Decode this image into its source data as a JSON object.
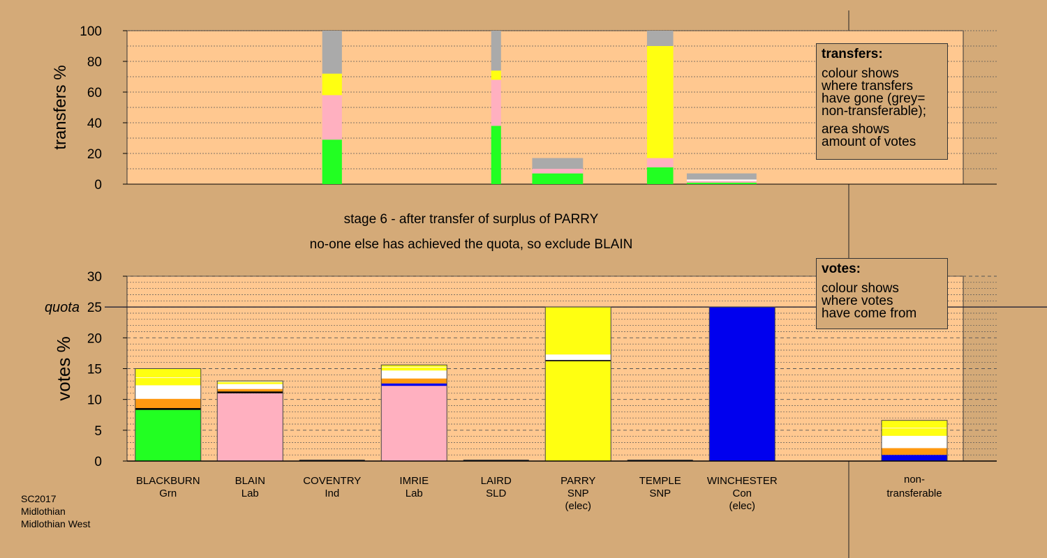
{
  "caption": {
    "line1": "stage 6 - after transfer of surplus of PARRY",
    "line2": "no-one else has achieved the quota, so exclude BLAIN"
  },
  "footer": [
    "SC2017",
    "Midlothian",
    "Midlothian West"
  ],
  "legend_transfers": {
    "title": "transfers:",
    "lines1": [
      "colour shows",
      "where transfers",
      "have gone (grey=",
      "non-transferable);"
    ],
    "lines2": [
      "area shows",
      "amount of votes"
    ]
  },
  "legend_votes": {
    "title": "votes:",
    "lines": [
      "colour shows",
      "where votes",
      "have come from"
    ]
  },
  "colors": {
    "background": "#d4aa78",
    "plot_bg": "#ffc890",
    "green": "#22ff22",
    "pink": "#ffb0c0",
    "yellow": "#ffff11",
    "grey": "#aaaaaa",
    "white": "#ffffff",
    "orange": "#ff9911",
    "blue": "#0000ee",
    "black": "#000000"
  },
  "chart_data": [
    {
      "type": "bar",
      "ylabel": "transfers %",
      "ylim": [
        0,
        100
      ],
      "yticks": [
        0,
        20,
        40,
        60,
        80,
        100
      ],
      "bars": [
        {
          "x_center": 2.5,
          "width": 0.24,
          "segments": [
            [
              "green",
              29
            ],
            [
              "pink",
              29
            ],
            [
              "yellow",
              14
            ],
            [
              "grey",
              28
            ]
          ]
        },
        {
          "x_center": 4.5,
          "width": 0.12,
          "segments": [
            [
              "green",
              38
            ],
            [
              "pink",
              30
            ],
            [
              "yellow",
              6
            ],
            [
              "grey",
              26
            ]
          ]
        },
        {
          "x_center": 5.25,
          "width": 0.62,
          "segments": [
            [
              "green",
              7
            ],
            [
              "pink",
              3
            ],
            [
              "grey",
              7
            ]
          ]
        },
        {
          "x_center": 6.5,
          "width": 0.32,
          "segments": [
            [
              "green",
              11
            ],
            [
              "pink",
              6
            ],
            [
              "yellow",
              73
            ],
            [
              "grey",
              10
            ]
          ]
        },
        {
          "x_center": 7.25,
          "width": 0.85,
          "segments": [
            [
              "green",
              1
            ],
            [
              "pink",
              1
            ],
            [
              "white",
              1
            ],
            [
              "grey",
              4
            ]
          ]
        }
      ]
    },
    {
      "type": "bar",
      "ylabel": "votes %",
      "ylim": [
        0,
        30
      ],
      "yticks": [
        0,
        5,
        10,
        15,
        20,
        25,
        30
      ],
      "quota": 25,
      "quota_label": "quota",
      "candidates": [
        {
          "name": "BLACKBURN",
          "party": "Grn",
          "note": "",
          "segments": [
            [
              "green",
              8.3
            ],
            [
              "black",
              0.3
            ],
            [
              "orange",
              1.5
            ],
            [
              "white",
              2.2
            ],
            [
              "yellow",
              1.2
            ],
            [
              "white",
              0.1
            ],
            [
              "yellow",
              1.4
            ]
          ]
        },
        {
          "name": "BLAIN",
          "party": "Lab",
          "note": "",
          "segments": [
            [
              "pink",
              11.0
            ],
            [
              "black",
              0.3
            ],
            [
              "orange",
              0.4
            ],
            [
              "white",
              0.8
            ],
            [
              "yellow",
              0.3
            ],
            [
              "white",
              0.1
            ],
            [
              "yellow",
              0.1
            ]
          ]
        },
        {
          "name": "COVENTRY",
          "party": "Ind",
          "note": "",
          "segments": []
        },
        {
          "name": "IMRIE",
          "party": "Lab",
          "note": "",
          "segments": [
            [
              "pink",
              12.2
            ],
            [
              "blue",
              0.4
            ],
            [
              "orange",
              0.8
            ],
            [
              "white",
              1.3
            ],
            [
              "yellow",
              0.5
            ],
            [
              "white",
              0.1
            ],
            [
              "yellow",
              0.3
            ]
          ]
        },
        {
          "name": "LAIRD",
          "party": "SLD",
          "note": "",
          "segments": []
        },
        {
          "name": "PARRY",
          "party": "SNP",
          "note": "(elec)",
          "segments": [
            [
              "yellow",
              16.2
            ],
            [
              "black",
              0.2
            ],
            [
              "white",
              0.9
            ],
            [
              "yellow",
              7.7
            ]
          ]
        },
        {
          "name": "TEMPLE",
          "party": "SNP",
          "note": "",
          "segments": []
        },
        {
          "name": "WINCHESTER",
          "party": "Con",
          "note": "(elec)",
          "segments": [
            [
              "blue",
              25
            ]
          ]
        }
      ],
      "nontransferable": {
        "label1": "non-",
        "label2": "transferable",
        "segments": [
          [
            "blue",
            1.0
          ],
          [
            "orange",
            1.1
          ],
          [
            "white",
            2.0
          ],
          [
            "yellow",
            1.2
          ],
          [
            "white",
            0.1
          ],
          [
            "yellow",
            1.2
          ]
        ]
      }
    }
  ]
}
